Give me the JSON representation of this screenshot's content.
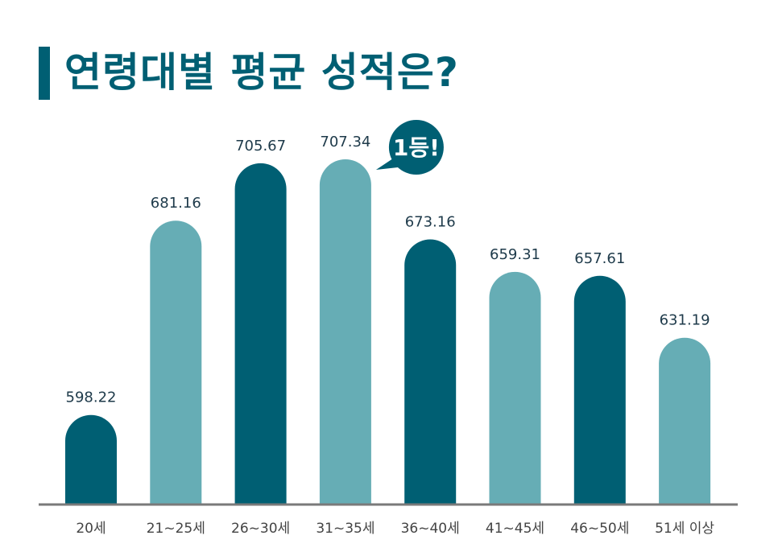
{
  "title": "연령대별 평균 성적은?",
  "callout": "1등!",
  "chart_data": {
    "type": "bar",
    "title": "연령대별 평균 성적은?",
    "categories": [
      "20세",
      "21~25세",
      "26~30세",
      "31~35세",
      "36~40세",
      "41~45세",
      "46~50세",
      "51세 이상"
    ],
    "values": [
      598.22,
      681.16,
      705.67,
      707.34,
      673.16,
      659.31,
      657.61,
      631.19
    ],
    "value_labels": [
      "598.22",
      "681.16",
      "705.67",
      "707.34",
      "673.16",
      "659.31",
      "657.61",
      "631.19"
    ],
    "highlight_index": 3,
    "colors": {
      "dark": "#005f73",
      "light": "#66adb5",
      "highlight_label": "#e0332a",
      "axis": "#7a7a7a"
    },
    "xlabel": "",
    "ylabel": ""
  }
}
